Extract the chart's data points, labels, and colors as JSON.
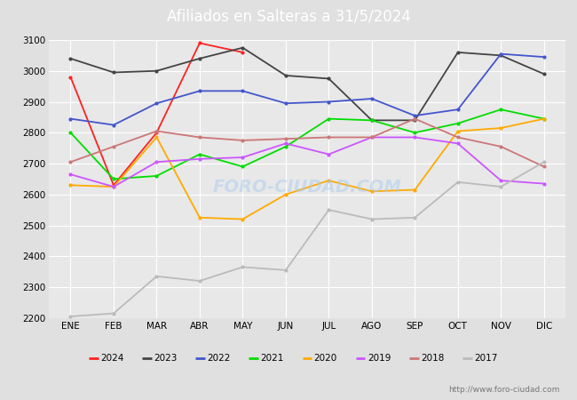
{
  "title": "Afiliados en Salteras a 31/5/2024",
  "title_bg_color": "#5599ee",
  "months": [
    "ENE",
    "FEB",
    "MAR",
    "ABR",
    "MAY",
    "JUN",
    "JUL",
    "AGO",
    "SEP",
    "OCT",
    "NOV",
    "DIC"
  ],
  "ylim": [
    2200,
    3100
  ],
  "yticks": [
    2200,
    2300,
    2400,
    2500,
    2600,
    2700,
    2800,
    2900,
    3000,
    3100
  ],
  "series": {
    "2024": {
      "color": "#ff2222",
      "data": [
        2980,
        2630,
        2800,
        3090,
        3060,
        null,
        null,
        null,
        null,
        null,
        null,
        null
      ]
    },
    "2023": {
      "color": "#444444",
      "data": [
        3040,
        2995,
        3000,
        3040,
        3075,
        2985,
        2975,
        2840,
        2840,
        3060,
        3050,
        2990
      ]
    },
    "2022": {
      "color": "#4455cc",
      "data": [
        2845,
        2825,
        2895,
        2935,
        2935,
        2895,
        2900,
        2910,
        2855,
        2875,
        3055,
        3045
      ]
    },
    "2021": {
      "color": "#00dd00",
      "data": [
        2800,
        2650,
        2660,
        2730,
        2690,
        2755,
        2845,
        2840,
        2800,
        2830,
        2875,
        2845
      ]
    },
    "2020": {
      "color": "#ffaa00",
      "data": [
        2630,
        2625,
        2785,
        2525,
        2520,
        2600,
        2645,
        2610,
        2615,
        2805,
        2815,
        2845
      ]
    },
    "2019": {
      "color": "#cc55ff",
      "data": [
        2665,
        2625,
        2705,
        2715,
        2720,
        2765,
        2730,
        2785,
        2785,
        2765,
        2645,
        2635
      ]
    },
    "2018": {
      "color": "#cc7777",
      "data": [
        2705,
        2755,
        2805,
        2785,
        2775,
        2780,
        2785,
        2785,
        2845,
        2785,
        2755,
        2690
      ]
    },
    "2017": {
      "color": "#bbbbbb",
      "data": [
        2205,
        2215,
        2335,
        2320,
        2365,
        2355,
        2550,
        2520,
        2525,
        2640,
        2625,
        2705
      ]
    }
  },
  "watermark": "FORO-CIUDAD.COM",
  "url": "http://www.foro-ciudad.com",
  "background_color": "#e0e0e0",
  "plot_bg_color": "#e8e8e8",
  "grid_color": "#ffffff"
}
